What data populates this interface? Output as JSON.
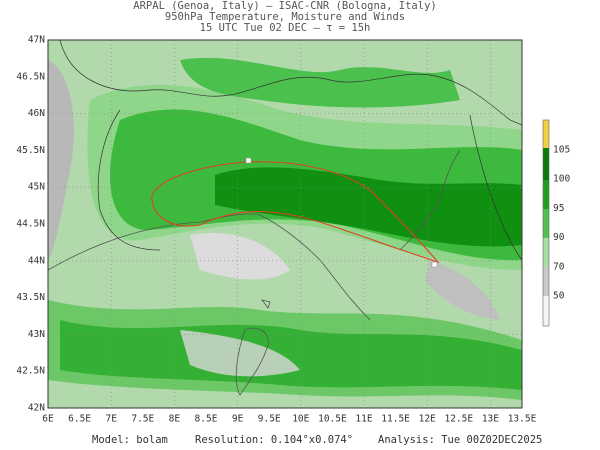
{
  "header": {
    "line1": "ARPAL (Genoa, Italy)  —  ISAC-CNR (Bologna, Italy)",
    "line2": "950hPa Temperature, Moisture and Winds",
    "line3": "15 UTC Tue 02 DEC  —  τ = 15h"
  },
  "map": {
    "longitude_labels": [
      "6E",
      "6.5E",
      "7E",
      "7.5E",
      "8E",
      "8.5E",
      "9E",
      "9.5E",
      "10E",
      "10.5E",
      "11E",
      "11.5E",
      "12E",
      "12.5E",
      "13E",
      "13.5E"
    ],
    "latitude_labels": [
      "47N",
      "46.5N",
      "46N",
      "45.5N",
      "45N",
      "44.5N",
      "44N",
      "43.5N",
      "43N",
      "42.5N",
      "42N"
    ]
  },
  "colorbar": {
    "labels": [
      105,
      100,
      95,
      90,
      70,
      50
    ]
  },
  "footer": {
    "model": "Model: bolam",
    "resolution": "Resolution: 0.104°x0.074°",
    "analysis": "Analysis: Tue 00Z02DEC2025"
  }
}
